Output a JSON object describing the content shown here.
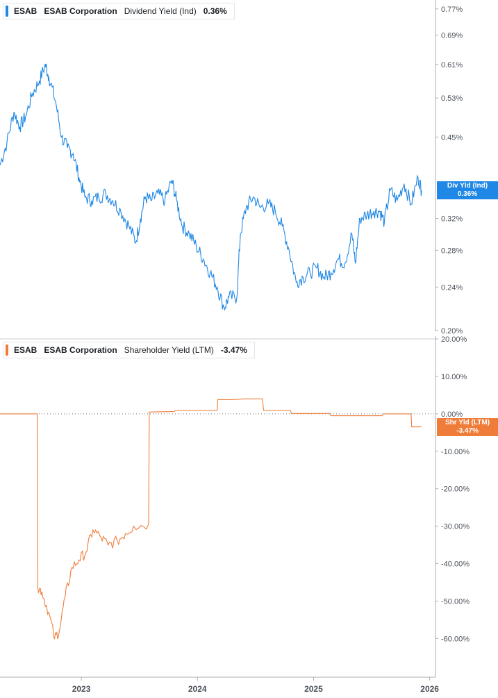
{
  "colors": {
    "dividend": "#1f87e5",
    "shareholder": "#f07c3a",
    "axis": "#a8adb3",
    "text": "#4a5058"
  },
  "legends": {
    "top": {
      "ticker": "ESAB",
      "company": "ESAB Corporation",
      "metric": "Dividend Yield (Ind)",
      "value": "0.36%"
    },
    "bottom": {
      "ticker": "ESAB",
      "company": "ESAB Corporation",
      "metric": "Shareholder Yield (LTM)",
      "value": "-3.47%"
    }
  },
  "badges": {
    "top": {
      "label": "Div Yld (Ind)",
      "value": "0.36%"
    },
    "bottom": {
      "label": "Shr Yld (LTM)",
      "value": "-3.47%"
    }
  },
  "chart_data": [
    {
      "type": "line",
      "title": "",
      "series": [
        {
          "name": "Dividend Yield (Ind)",
          "unit": "%",
          "points": [
            [
              2022.3,
              0.4
            ],
            [
              2022.36,
              0.44
            ],
            [
              2022.42,
              0.5
            ],
            [
              2022.47,
              0.47
            ],
            [
              2022.52,
              0.49
            ],
            [
              2022.58,
              0.54
            ],
            [
              2022.64,
              0.57
            ],
            [
              2022.69,
              0.61
            ],
            [
              2022.72,
              0.58
            ],
            [
              2022.78,
              0.52
            ],
            [
              2022.83,
              0.45
            ],
            [
              2022.88,
              0.43
            ],
            [
              2022.93,
              0.42
            ],
            [
              2022.98,
              0.38
            ],
            [
              2023.03,
              0.35
            ],
            [
              2023.09,
              0.345
            ],
            [
              2023.15,
              0.35
            ],
            [
              2023.21,
              0.355
            ],
            [
              2023.27,
              0.345
            ],
            [
              2023.34,
              0.33
            ],
            [
              2023.41,
              0.31
            ],
            [
              2023.47,
              0.29
            ],
            [
              2023.51,
              0.32
            ],
            [
              2023.55,
              0.35
            ],
            [
              2023.6,
              0.345
            ],
            [
              2023.66,
              0.355
            ],
            [
              2023.72,
              0.345
            ],
            [
              2023.78,
              0.375
            ],
            [
              2023.82,
              0.345
            ],
            [
              2023.87,
              0.31
            ],
            [
              2023.93,
              0.3
            ],
            [
              2023.99,
              0.285
            ],
            [
              2024.05,
              0.27
            ],
            [
              2024.11,
              0.255
            ],
            [
              2024.17,
              0.24
            ],
            [
              2024.23,
              0.22
            ],
            [
              2024.27,
              0.23
            ],
            [
              2024.34,
              0.23
            ],
            [
              2024.37,
              0.3
            ],
            [
              2024.42,
              0.335
            ],
            [
              2024.48,
              0.35
            ],
            [
              2024.54,
              0.335
            ],
            [
              2024.61,
              0.34
            ],
            [
              2024.67,
              0.33
            ],
            [
              2024.73,
              0.31
            ],
            [
              2024.79,
              0.28
            ],
            [
              2024.85,
              0.245
            ],
            [
              2024.91,
              0.25
            ],
            [
              2024.97,
              0.255
            ],
            [
              2025.03,
              0.26
            ],
            [
              2025.09,
              0.25
            ],
            [
              2025.15,
              0.255
            ],
            [
              2025.21,
              0.27
            ],
            [
              2025.27,
              0.265
            ],
            [
              2025.33,
              0.3
            ],
            [
              2025.36,
              0.265
            ],
            [
              2025.4,
              0.32
            ],
            [
              2025.46,
              0.325
            ],
            [
              2025.52,
              0.33
            ],
            [
              2025.57,
              0.33
            ],
            [
              2025.61,
              0.315
            ],
            [
              2025.66,
              0.36
            ],
            [
              2025.72,
              0.345
            ],
            [
              2025.78,
              0.37
            ],
            [
              2025.84,
              0.34
            ],
            [
              2025.9,
              0.38
            ],
            [
              2025.93,
              0.36
            ]
          ]
        }
      ],
      "ylim": [
        0.2,
        0.79
      ],
      "yticks": [
        "0.77%",
        "0.69%",
        "0.61%",
        "0.53%",
        "0.45%",
        "0.32%",
        "0.28%",
        "0.24%",
        "0.20%"
      ],
      "scale": "log",
      "current_value": 0.36,
      "grid": false,
      "legend_placement": "top-left"
    },
    {
      "type": "line",
      "title": "",
      "series": [
        {
          "name": "Shareholder Yield (LTM)",
          "unit": "%",
          "points": [
            [
              2022.3,
              0.0
            ],
            [
              2022.62,
              0.0
            ],
            [
              2022.625,
              -46.0
            ],
            [
              2022.66,
              -47.5
            ],
            [
              2022.72,
              -53.0
            ],
            [
              2022.77,
              -60.0
            ],
            [
              2022.81,
              -58.0
            ],
            [
              2022.86,
              -49.0
            ],
            [
              2022.92,
              -41.0
            ],
            [
              2022.98,
              -39.0
            ],
            [
              2023.04,
              -37.0
            ],
            [
              2023.1,
              -31.0
            ],
            [
              2023.17,
              -33.0
            ],
            [
              2023.23,
              -35.0
            ],
            [
              2023.31,
              -34.0
            ],
            [
              2023.38,
              -32.0
            ],
            [
              2023.45,
              -30.0
            ],
            [
              2023.58,
              -29.5
            ],
            [
              2023.585,
              0.5
            ],
            [
              2023.8,
              0.6
            ],
            [
              2023.81,
              0.9
            ],
            [
              2024.17,
              0.9
            ],
            [
              2024.175,
              3.8
            ],
            [
              2024.3,
              3.8
            ],
            [
              2024.4,
              4.0
            ],
            [
              2024.56,
              4.0
            ],
            [
              2024.57,
              0.9
            ],
            [
              2024.8,
              0.9
            ],
            [
              2024.81,
              0.1
            ],
            [
              2025.14,
              0.1
            ],
            [
              2025.15,
              -0.5
            ],
            [
              2025.59,
              -0.5
            ],
            [
              2025.6,
              0.0
            ],
            [
              2025.84,
              0.0
            ],
            [
              2025.845,
              -3.5
            ],
            [
              2025.93,
              -3.47
            ]
          ]
        }
      ],
      "ylim": [
        -64.0,
        20.0
      ],
      "yticks": [
        "20.00%",
        "10.00%",
        "0.00%",
        "-10.00%",
        "-20.00%",
        "-30.00%",
        "-40.00%",
        "-50.00%",
        "-60.00%"
      ],
      "zero_line": 0.0,
      "current_value": -3.47,
      "grid": false,
      "legend_placement": "top-left"
    }
  ],
  "x_axis": {
    "range": [
      2022.3,
      2026.05
    ],
    "labels": [
      "2023",
      "2024",
      "2025",
      "2026"
    ]
  }
}
